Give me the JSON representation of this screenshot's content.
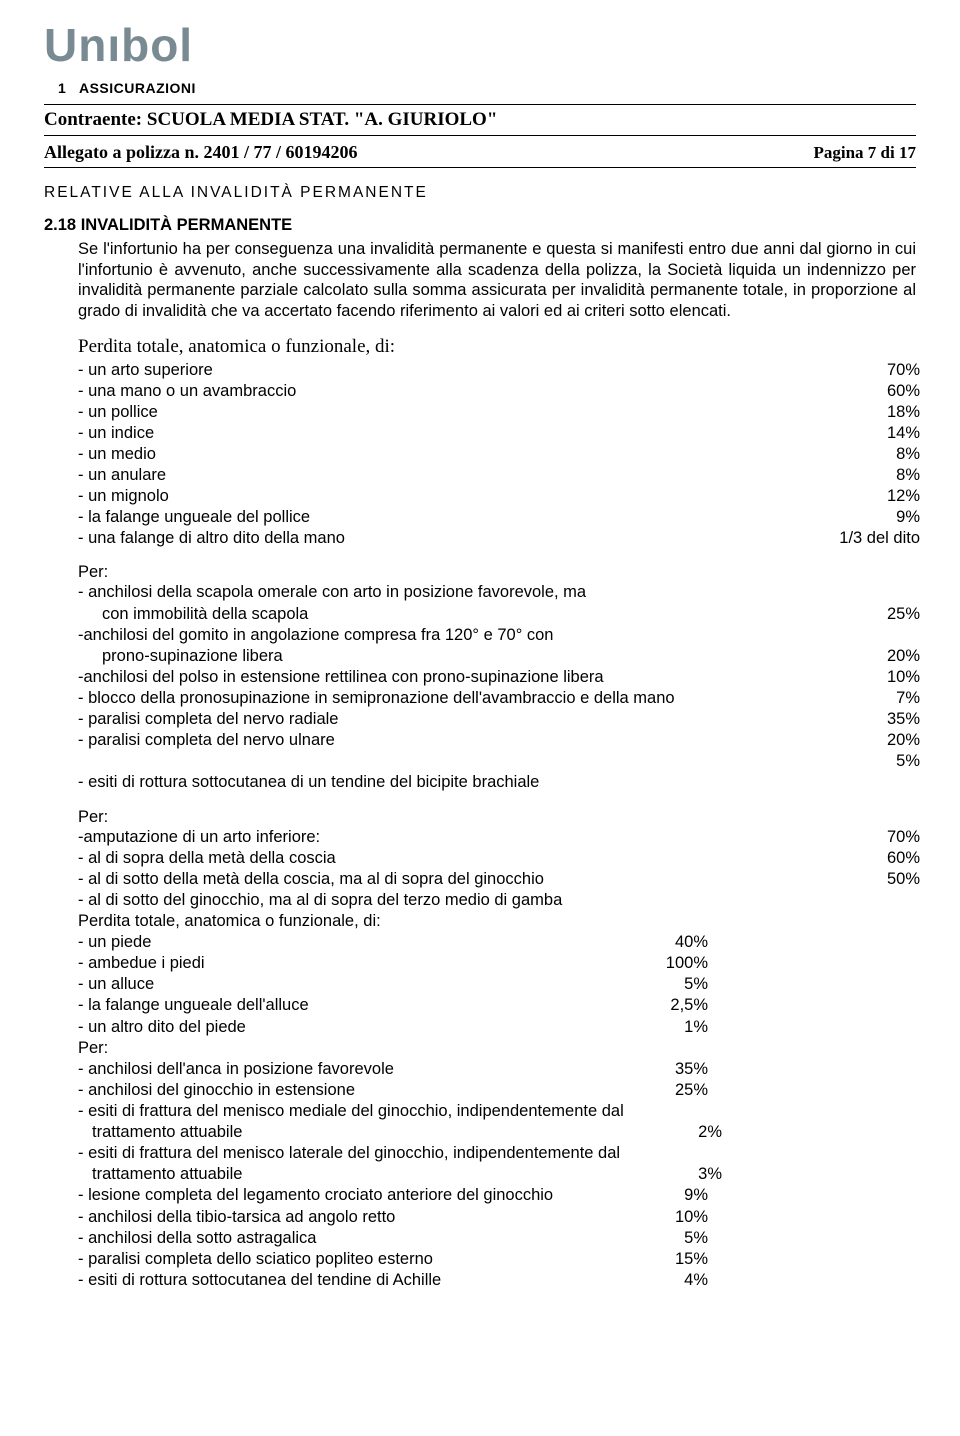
{
  "header": {
    "logo_text": "Unıbol",
    "assicurazioni_prefix": "1",
    "assicurazioni": "ASSICURAZIONI",
    "contraente_label": "Contraente:",
    "contraente_value": "SCUOLA MEDIA STAT. \"A. GIURIOLO\"",
    "allegato_label": "Allegato a polizza n.",
    "allegato_value": "2401 / 77 / 60194206",
    "pagina": "Pagina 7 di 17"
  },
  "section_title": "RELATIVE ALLA INVALIDITÀ PERMANENTE",
  "clause": {
    "number": "2.18",
    "title": "INVALIDITÀ PERMANENTE",
    "body": "Se l'infortunio ha per conseguenza una invalidità permanente e questa si manifesti entro due anni dal giorno in cui l'infortunio è avvenuto, anche successivamente alla scadenza della polizza, la Società liquida un indennizzo per invalidità permanente parziale calcolato sulla somma assicurata per invalidità permanente totale, in proporzione al grado di invalidità che va accertato facendo riferimento ai valori ed ai criteri sotto elencati."
  },
  "perdita_head": "Perdita totale, anatomica o funzionale, di:",
  "items1": [
    {
      "label": "- un arto superiore",
      "value": "70%"
    },
    {
      "label": "- una mano o un avambraccio",
      "value": "60%"
    },
    {
      "label": "- un pollice",
      "value": "18%"
    },
    {
      "label": "- un indice",
      "value": "14%"
    },
    {
      "label": "- un medio",
      "value": "8%"
    },
    {
      "label": "- un anulare",
      "value": "8%"
    },
    {
      "label": "- un mignolo",
      "value": "12%"
    },
    {
      "label": "- la falange ungueale del pollice",
      "value": "9%"
    },
    {
      "label": "- una falange di altro dito della mano",
      "value": "1/3 del dito"
    }
  ],
  "per1_label": "Per:",
  "items2": [
    {
      "label": "- anchilosi della scapola omerale con arto in posizione favorevole, ma",
      "value": ""
    },
    {
      "label": "con immobilità della scapola",
      "value": "25%",
      "indent": true
    },
    {
      "label": "-anchilosi del gomito in angolazione compresa fra 120° e 70° con",
      "value": ""
    },
    {
      "label": "prono-supinazione libera",
      "value": "20%",
      "indent": true
    },
    {
      "label": "-anchilosi del polso in estensione rettilinea  con prono-supinazione libera",
      "value": "10%"
    },
    {
      "label": "- blocco della pronosupinazione in  semipronazione dell'avambraccio e della  mano",
      "value": "7%"
    },
    {
      "label": "- paralisi completa del nervo radiale",
      "value": "35%"
    },
    {
      "label": "- paralisi completa del nervo ulnare",
      "value": "20%"
    },
    {
      "label": "",
      "value": "5%"
    },
    {
      "label": "- esiti di rottura sottocutanea di un tendine  del bicipite brachiale",
      "value": ""
    }
  ],
  "per2_label": "Per:",
  "items3": [
    {
      "label": "-amputazione di un arto inferiore:",
      "value": "70%"
    },
    {
      "label": "- al di sopra della metà della coscia",
      "value": "60%"
    },
    {
      "label": "- al di sotto della metà della coscia, ma al di sopra del ginocchio",
      "value": "50%"
    },
    {
      "label": "- al di sotto del ginocchio, ma al di sopra del terzo medio di gamba",
      "value": ""
    }
  ],
  "perdita2_head": "Perdita totale, anatomica o funzionale, di:",
  "items4": [
    {
      "label": "- un piede",
      "value": "40%"
    },
    {
      "label": "- ambedue i piedi",
      "value": "100%"
    },
    {
      "label": "- un alluce",
      "value": "5%"
    },
    {
      "label": "- la falange ungueale dell'alluce",
      "value": "2,5%"
    },
    {
      "label": "- un altro dito del piede",
      "value": "1%"
    }
  ],
  "per3_label": "Per:",
  "items5": [
    {
      "label": "- anchilosi dell'anca in posizione  favorevole",
      "value": "35%"
    },
    {
      "label": "- anchilosi del ginocchio in estensione",
      "value": "25%"
    },
    {
      "label": "- esiti di frattura del menisco mediale  del ginocchio, indipendentemente dal",
      "value": ""
    },
    {
      "label": "trattamento attuabile",
      "value": "2%",
      "indent_small": true
    },
    {
      "label": "- esiti di frattura del menisco laterale  del ginocchio, indipendentemente dal",
      "value": ""
    },
    {
      "label": "trattamento attuabile",
      "value": "3%",
      "indent_small": true
    },
    {
      "label": "- lesione completa del legamento  crociato anteriore del ginocchio",
      "value": "9%"
    },
    {
      "label": "- anchilosi della tibio-tarsica ad angolo  retto",
      "value": "10%"
    },
    {
      "label": "- anchilosi della sotto astragalica",
      "value": "5%"
    },
    {
      "label": "- paralisi completa dello sciatico popliteo  esterno",
      "value": "15%"
    },
    {
      "label": "- esiti di rottura sottocutanea del  tendine di Achille",
      "value": "4%"
    }
  ]
}
